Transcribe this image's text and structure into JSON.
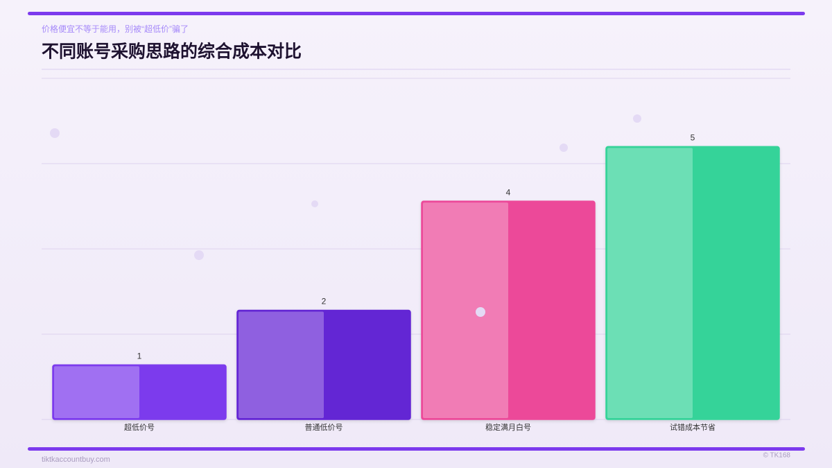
{
  "header": {
    "subtitle": "价格便宜不等于能用，别被“超低价”骗了",
    "title": "不同账号采购思路的综合成本对比"
  },
  "chart_data": {
    "type": "bar",
    "categories": [
      "超低价号",
      "普通低价号",
      "稳定满月白号",
      "试错成本节省"
    ],
    "values": [
      1,
      2,
      4,
      5
    ],
    "colors": [
      "#7c3aed",
      "#6425d4",
      "#ec4899",
      "#34d399"
    ],
    "ylim": [
      0,
      6.25
    ],
    "grid": true
  },
  "footer": {
    "site": "tiktkaccountbuy.com",
    "copyright": "© TK168"
  }
}
